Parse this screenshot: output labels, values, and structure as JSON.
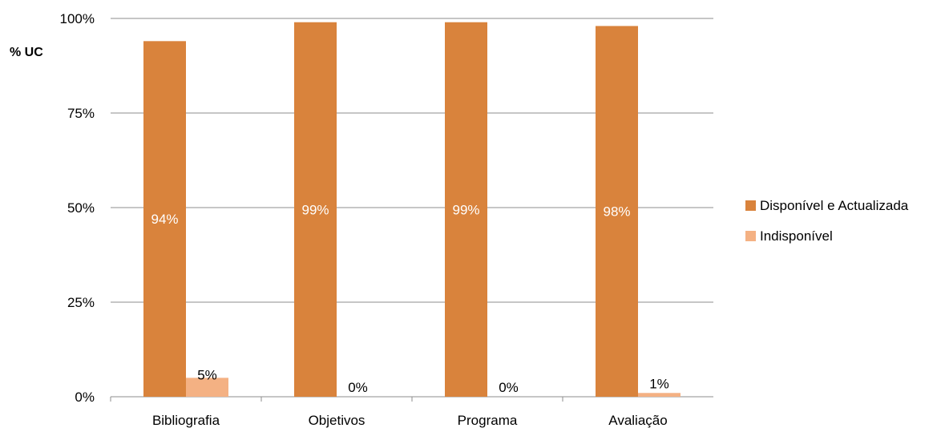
{
  "chart_data": {
    "type": "bar",
    "title": "",
    "xlabel": "",
    "ylabel": "% UC",
    "ylim": [
      0,
      100
    ],
    "yticks": [
      "0%",
      "25%",
      "50%",
      "75%",
      "100%"
    ],
    "categories": [
      "Bibliografia",
      "Objetivos",
      "Programa",
      "Avaliação"
    ],
    "series": [
      {
        "name": "Disponível e Actualizada",
        "values": [
          94,
          99,
          99,
          98
        ],
        "labels": [
          "94%",
          "99%",
          "99%",
          "98%"
        ]
      },
      {
        "name": "Indisponível",
        "values": [
          5,
          0,
          0,
          1
        ],
        "labels": [
          "5%",
          "0%",
          "0%",
          "1%"
        ]
      }
    ],
    "colors": [
      "#D9833C",
      "#F4B183"
    ],
    "grid": true,
    "legend": "right"
  }
}
